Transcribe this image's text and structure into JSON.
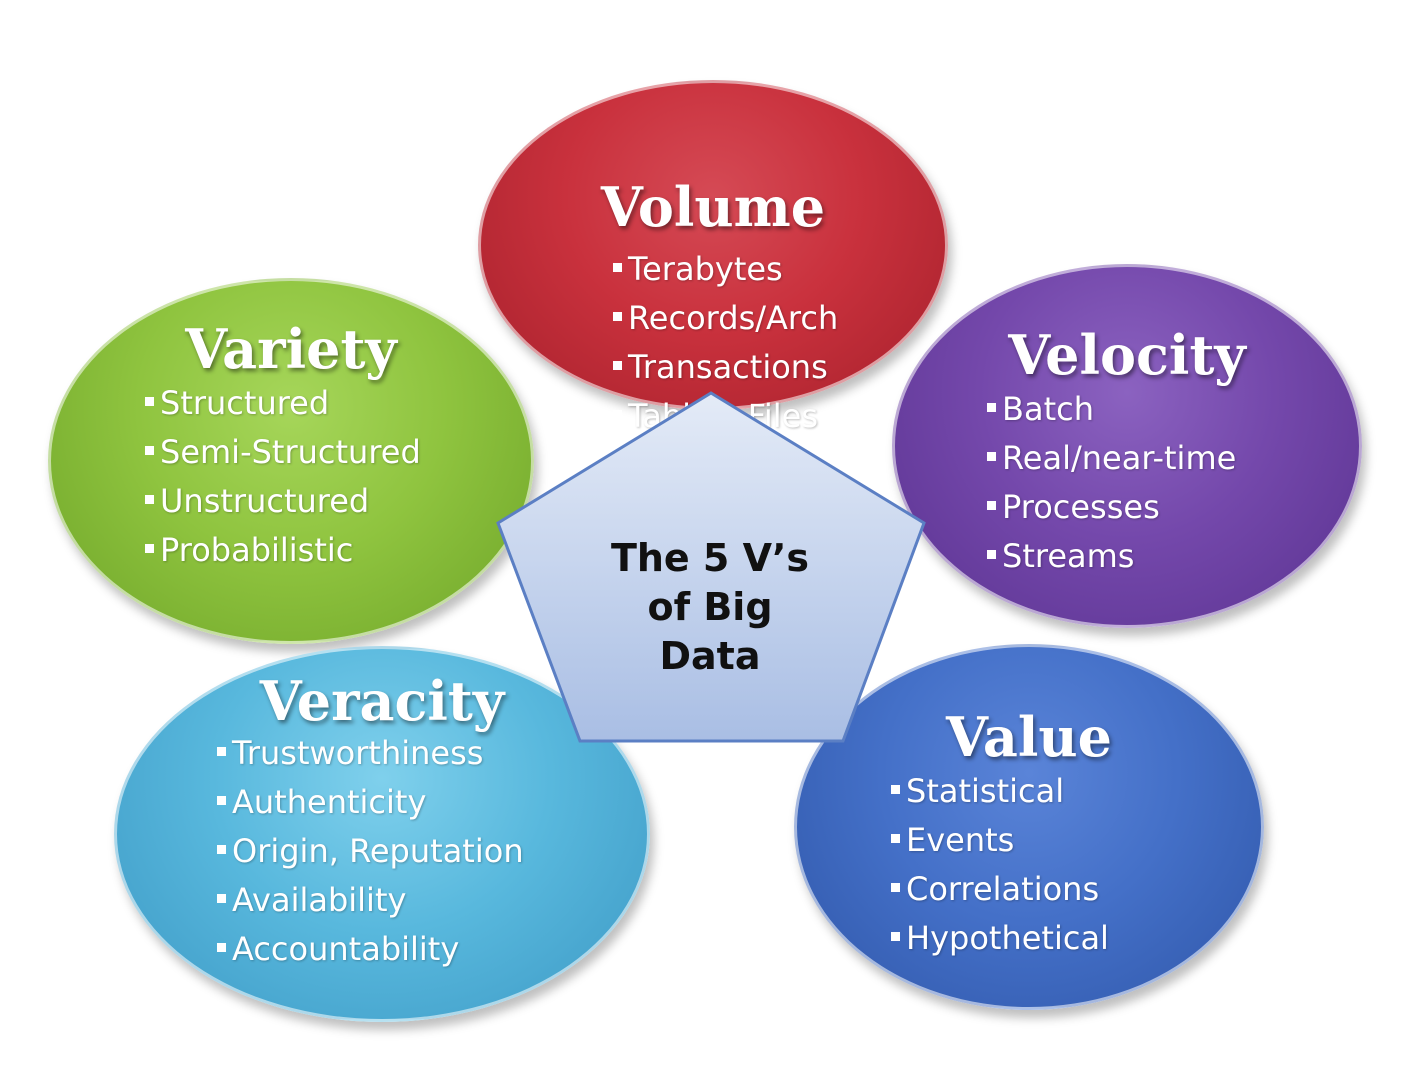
{
  "center": {
    "lines": [
      "The 5 V’s",
      "of Big",
      "Data"
    ]
  },
  "nodes": {
    "volume": {
      "title": "Volume",
      "items": [
        "Terabytes",
        "Records/Arch",
        "Transactions",
        "Tables, Files"
      ],
      "color": "#c9313d"
    },
    "variety": {
      "title": "Variety",
      "items": [
        "Structured",
        "Semi-Structured",
        "Unstructured",
        "Probabilistic"
      ],
      "color": "#8fc43f"
    },
    "velocity": {
      "title": "Velocity",
      "items": [
        "Batch",
        "Real/near-time",
        "Processes",
        "Streams"
      ],
      "color": "#7448ab"
    },
    "veracity": {
      "title": "Veracity",
      "items": [
        "Trustworthiness",
        "Authenticity",
        "Origin, Reputation",
        "Availability",
        "Accountability"
      ],
      "color": "#58b8dd"
    },
    "value": {
      "title": "Value",
      "items": [
        "Statistical",
        "Events",
        "Correlations",
        "Hypothetical"
      ],
      "color": "#4470c8"
    }
  }
}
